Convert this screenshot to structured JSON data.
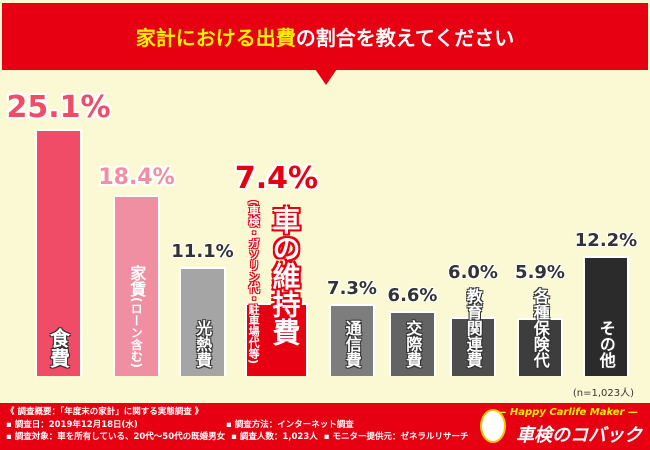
{
  "header": {
    "title_highlight": "家計における出費",
    "title_rest": "の割合を教えてください"
  },
  "chart_data": {
    "type": "bar",
    "categories": [
      "食費",
      "家賃（ローン含む）",
      "光熱費",
      "車の維持費（車検・ガソリン代・駐車場代等）",
      "通信費",
      "交際費",
      "教育関連費",
      "各種保険代",
      "その他"
    ],
    "values": [
      25.1,
      18.4,
      11.1,
      7.4,
      7.3,
      6.6,
      6.0,
      5.9,
      12.2
    ],
    "value_labels": [
      "25.1%",
      "18.4%",
      "11.1%",
      "7.4%",
      "7.3%",
      "6.6%",
      "6.0%",
      "5.9%",
      "12.2%"
    ],
    "bar_labels": [
      "食費",
      "家賃",
      "光熱費",
      "車の維持費",
      "通信費",
      "交際費",
      "教育関連費",
      "各種保険代",
      "その他"
    ],
    "bar_sublabels": [
      "",
      "(ローン含む)",
      "",
      "(車検・ガソリン代・駐車場代等)",
      "",
      "",
      "",
      "",
      ""
    ],
    "colors": [
      "#f04b67",
      "#f08fa1",
      "#a5a5a5",
      "#e60012",
      "#7d7d7d",
      "#636363",
      "#4d4d4d",
      "#3d3d3d",
      "#2b2b2b"
    ],
    "value_colors": [
      "#f04b67",
      "#f08fa1",
      "#333333",
      "#e60012",
      "#333333",
      "#333333",
      "#333333",
      "#333333",
      "#333333"
    ],
    "unit": "%",
    "ylim": [
      0,
      25.1
    ]
  },
  "note": "(n=1,023人)",
  "footer": {
    "overview": "《 調査概要：「年度末の家計」に関する実態調査 》",
    "date": "▪ 調査日：2019年12月18日(水)",
    "method": "▪ 調査方法：インターネット調査",
    "target": "▪ 調査対象：車を所有している、20代〜50代の既婚男女",
    "count": "▪ 調査人数：1,023人",
    "provider": "▪ モニター提供元：ゼネラルリサーチ"
  },
  "logo": {
    "tagline": "— Happy Carlife Maker —",
    "name": "車検のコバック"
  }
}
